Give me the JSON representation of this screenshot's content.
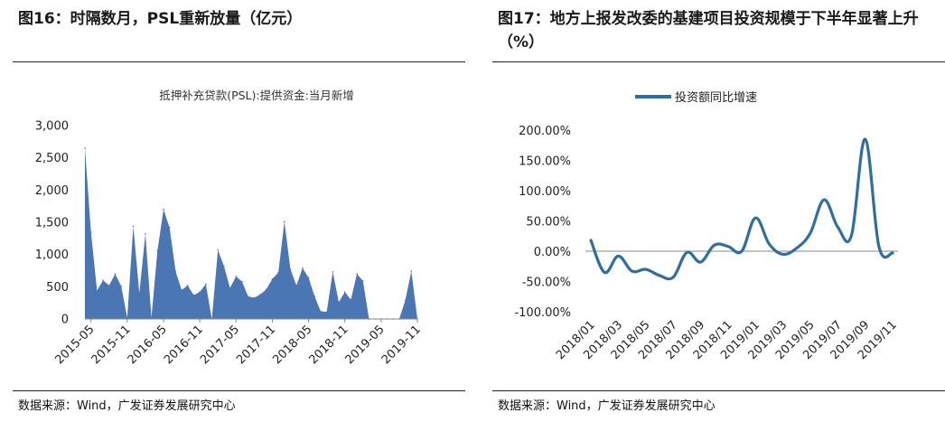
{
  "left": {
    "figure_title": "图16：时隔数月，PSL重新放量（亿元）",
    "source": "数据来源：Wind，广发证券发展研究中心"
  },
  "right": {
    "figure_title": "图17：地方上报发改委的基建项目投资规模于下半年显著上升（%）",
    "source": "数据来源：Wind，广发证券发展研究中心"
  },
  "chart_data": [
    {
      "type": "area",
      "title": "抵押补充贷款(PSL):提供资金:当月新增",
      "ylim": [
        0,
        3000
      ],
      "yticks": [
        "0",
        "500",
        "1,000",
        "1,500",
        "2,000",
        "2,500",
        "3,000"
      ],
      "xtick_labels": [
        "2015-05",
        "2015-11",
        "2016-05",
        "2016-11",
        "2017-05",
        "2017-11",
        "2018-05",
        "2018-11",
        "2019-05",
        "2019-11"
      ],
      "legend": "none",
      "grid": false,
      "color": "#4a76b4",
      "x": [
        "2015-04",
        "2015-05",
        "2015-06",
        "2015-07",
        "2015-08",
        "2015-09",
        "2015-10",
        "2015-11",
        "2015-12",
        "2016-01",
        "2016-02",
        "2016-03",
        "2016-04",
        "2016-05",
        "2016-06",
        "2016-07",
        "2016-08",
        "2016-09",
        "2016-10",
        "2016-11",
        "2016-12",
        "2017-01",
        "2017-02",
        "2017-03",
        "2017-04",
        "2017-05",
        "2017-06",
        "2017-07",
        "2017-08",
        "2017-09",
        "2017-10",
        "2017-11",
        "2017-12",
        "2018-01",
        "2018-02",
        "2018-03",
        "2018-04",
        "2018-05",
        "2018-06",
        "2018-07",
        "2018-08",
        "2018-09",
        "2018-10",
        "2018-11",
        "2018-12",
        "2019-01",
        "2019-02",
        "2019-03",
        "2019-04",
        "2019-05",
        "2019-06",
        "2019-07",
        "2019-08",
        "2019-09",
        "2019-10",
        "2019-11"
      ],
      "values": [
        2650,
        1350,
        440,
        600,
        520,
        700,
        510,
        20,
        1440,
        400,
        1320,
        20,
        1060,
        1700,
        1420,
        740,
        450,
        520,
        370,
        420,
        540,
        0,
        1070,
        820,
        480,
        660,
        580,
        350,
        330,
        380,
        460,
        620,
        720,
        1510,
        770,
        520,
        790,
        640,
        350,
        120,
        110,
        730,
        260,
        420,
        300,
        700,
        590,
        0,
        0,
        0,
        0,
        0,
        0,
        290,
        740,
        0
      ]
    },
    {
      "type": "line",
      "series": [
        {
          "name": "投资额同比增速",
          "color": "#2f6ea1"
        }
      ],
      "ylim": [
        -100,
        200
      ],
      "yticks": [
        "-100.00%",
        "-50.00%",
        "0.00%",
        "50.00%",
        "100.00%",
        "150.00%",
        "200.00%"
      ],
      "xtick_labels": [
        "2018/01",
        "2018/03",
        "2018/05",
        "2018/07",
        "2018/09",
        "2018/11",
        "2019/01",
        "2019/03",
        "2019/05",
        "2019/07",
        "2019/09",
        "2019/11"
      ],
      "legend": "top",
      "grid": false,
      "x": [
        "2018/01",
        "2018/02",
        "2018/03",
        "2018/04",
        "2018/05",
        "2018/06",
        "2018/07",
        "2018/08",
        "2018/09",
        "2018/10",
        "2018/11",
        "2018/12",
        "2019/01",
        "2019/02",
        "2019/03",
        "2019/04",
        "2019/05",
        "2019/06",
        "2019/07",
        "2019/08",
        "2019/09",
        "2019/10",
        "2019/11"
      ],
      "values": [
        18,
        -35,
        -8,
        -33,
        -30,
        -40,
        -43,
        -2,
        -18,
        10,
        8,
        0,
        55,
        12,
        -5,
        5,
        30,
        85,
        40,
        26,
        185,
        8,
        -3
      ]
    }
  ]
}
